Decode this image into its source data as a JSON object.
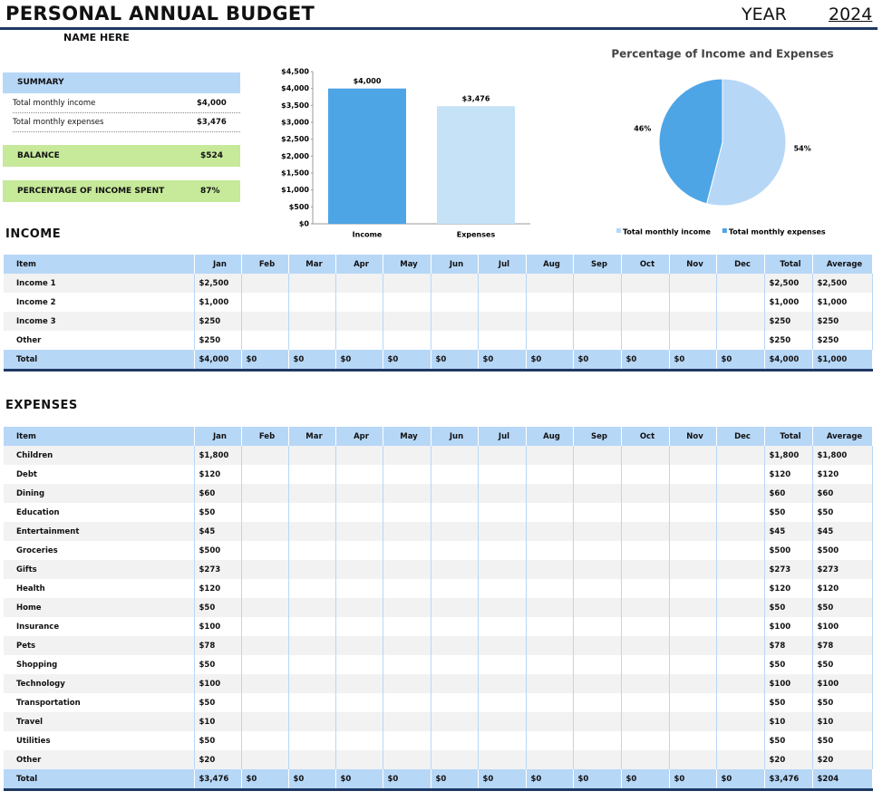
{
  "header": {
    "title": "PERSONAL ANNUAL BUDGET",
    "year_label": "YEAR",
    "year": "2024",
    "name": "NAME HERE"
  },
  "summary": {
    "title": "SUMMARY",
    "rows": [
      [
        "Total monthly income",
        "$4,000"
      ],
      [
        "Total monthly expenses",
        "$3,476"
      ]
    ],
    "balance": [
      "BALANCE",
      "$524"
    ],
    "percent_spent": [
      "PERCENTAGE OF INCOME SPENT",
      "87%"
    ]
  },
  "chart_data": [
    {
      "type": "bar",
      "categories": [
        "Income",
        "Expenses"
      ],
      "values": [
        4000,
        3476
      ],
      "value_labels": [
        "$4,000",
        "$3,476"
      ],
      "colors": [
        "#4ea5e6",
        "#c5e2f7"
      ],
      "ylim": [
        0,
        4500
      ],
      "yticks": [
        {
          "value": 0,
          "label": "$0"
        },
        {
          "value": 500,
          "label": "$500"
        },
        {
          "value": 1000,
          "label": "$1,000"
        },
        {
          "value": 1500,
          "label": "$1,500"
        },
        {
          "value": 2000,
          "label": "$2,000"
        },
        {
          "value": 2500,
          "label": "$2,500"
        },
        {
          "value": 3000,
          "label": "$3,000"
        },
        {
          "value": 3500,
          "label": "$3,500"
        },
        {
          "value": 4000,
          "label": "$4,000"
        },
        {
          "value": 4500,
          "label": "$4,500"
        }
      ]
    },
    {
      "type": "pie",
      "title": "Percentage of Income and Expenses",
      "categories": [
        "Total monthly income",
        "Total monthly expenses"
      ],
      "values": [
        54,
        46
      ],
      "value_labels": [
        "54%",
        "46%"
      ],
      "colors": [
        "#b7d7f7",
        "#4ea5e6"
      ],
      "legend": "bottom"
    }
  ],
  "income": {
    "title": "INCOME",
    "columns": [
      "Item",
      "Jan",
      "Feb",
      "Mar",
      "Apr",
      "May",
      "Jun",
      "Jul",
      "Aug",
      "Sep",
      "Oct",
      "Nov",
      "Dec",
      "Total",
      "Average"
    ],
    "rows": [
      [
        "Income 1",
        "$2,500",
        null,
        null,
        null,
        null,
        null,
        null,
        null,
        null,
        null,
        null,
        null,
        "$2,500",
        "$2,500"
      ],
      [
        "Income 2",
        "$1,000",
        null,
        null,
        null,
        null,
        null,
        null,
        null,
        null,
        null,
        null,
        null,
        "$1,000",
        "$1,000"
      ],
      [
        "Income 3",
        "$250",
        null,
        null,
        null,
        null,
        null,
        null,
        null,
        null,
        null,
        null,
        null,
        "$250",
        "$250"
      ],
      [
        "Other",
        "$250",
        null,
        null,
        null,
        null,
        null,
        null,
        null,
        null,
        null,
        null,
        null,
        "$250",
        "$250"
      ]
    ],
    "total": [
      "Total",
      "$4,000",
      "$0",
      "$0",
      "$0",
      "$0",
      "$0",
      "$0",
      "$0",
      "$0",
      "$0",
      "$0",
      "$0",
      "$4,000",
      "$1,000"
    ]
  },
  "expenses": {
    "title": "EXPENSES",
    "columns": [
      "Item",
      "Jan",
      "Feb",
      "Mar",
      "Apr",
      "May",
      "Jun",
      "Jul",
      "Aug",
      "Sep",
      "Oct",
      "Nov",
      "Dec",
      "Total",
      "Average"
    ],
    "rows": [
      [
        "Children",
        "$1,800",
        null,
        null,
        null,
        null,
        null,
        null,
        null,
        null,
        null,
        null,
        null,
        "$1,800",
        "$1,800"
      ],
      [
        "Debt",
        "$120",
        null,
        null,
        null,
        null,
        null,
        null,
        null,
        null,
        null,
        null,
        null,
        "$120",
        "$120"
      ],
      [
        "Dining",
        "$60",
        null,
        null,
        null,
        null,
        null,
        null,
        null,
        null,
        null,
        null,
        null,
        "$60",
        "$60"
      ],
      [
        "Education",
        "$50",
        null,
        null,
        null,
        null,
        null,
        null,
        null,
        null,
        null,
        null,
        null,
        "$50",
        "$50"
      ],
      [
        "Entertainment",
        "$45",
        null,
        null,
        null,
        null,
        null,
        null,
        null,
        null,
        null,
        null,
        null,
        "$45",
        "$45"
      ],
      [
        "Groceries",
        "$500",
        null,
        null,
        null,
        null,
        null,
        null,
        null,
        null,
        null,
        null,
        null,
        "$500",
        "$500"
      ],
      [
        "Gifts",
        "$273",
        null,
        null,
        null,
        null,
        null,
        null,
        null,
        null,
        null,
        null,
        null,
        "$273",
        "$273"
      ],
      [
        "Health",
        "$120",
        null,
        null,
        null,
        null,
        null,
        null,
        null,
        null,
        null,
        null,
        null,
        "$120",
        "$120"
      ],
      [
        "Home",
        "$50",
        null,
        null,
        null,
        null,
        null,
        null,
        null,
        null,
        null,
        null,
        null,
        "$50",
        "$50"
      ],
      [
        "Insurance",
        "$100",
        null,
        null,
        null,
        null,
        null,
        null,
        null,
        null,
        null,
        null,
        null,
        "$100",
        "$100"
      ],
      [
        "Pets",
        "$78",
        null,
        null,
        null,
        null,
        null,
        null,
        null,
        null,
        null,
        null,
        null,
        "$78",
        "$78"
      ],
      [
        "Shopping",
        "$50",
        null,
        null,
        null,
        null,
        null,
        null,
        null,
        null,
        null,
        null,
        null,
        "$50",
        "$50"
      ],
      [
        "Technology",
        "$100",
        null,
        null,
        null,
        null,
        null,
        null,
        null,
        null,
        null,
        null,
        null,
        "$100",
        "$100"
      ],
      [
        "Transportation",
        "$50",
        null,
        null,
        null,
        null,
        null,
        null,
        null,
        null,
        null,
        null,
        null,
        "$50",
        "$50"
      ],
      [
        "Travel",
        "$10",
        null,
        null,
        null,
        null,
        null,
        null,
        null,
        null,
        null,
        null,
        null,
        "$10",
        "$10"
      ],
      [
        "Utilities",
        "$50",
        null,
        null,
        null,
        null,
        null,
        null,
        null,
        null,
        null,
        null,
        null,
        "$50",
        "$50"
      ],
      [
        "Other",
        "$20",
        null,
        null,
        null,
        null,
        null,
        null,
        null,
        null,
        null,
        null,
        null,
        "$20",
        "$20"
      ]
    ],
    "total": [
      "Total",
      "$3,476",
      "$0",
      "$0",
      "$0",
      "$0",
      "$0",
      "$0",
      "$0",
      "$0",
      "$0",
      "$0",
      "$0",
      "$3,476",
      "$204"
    ]
  }
}
